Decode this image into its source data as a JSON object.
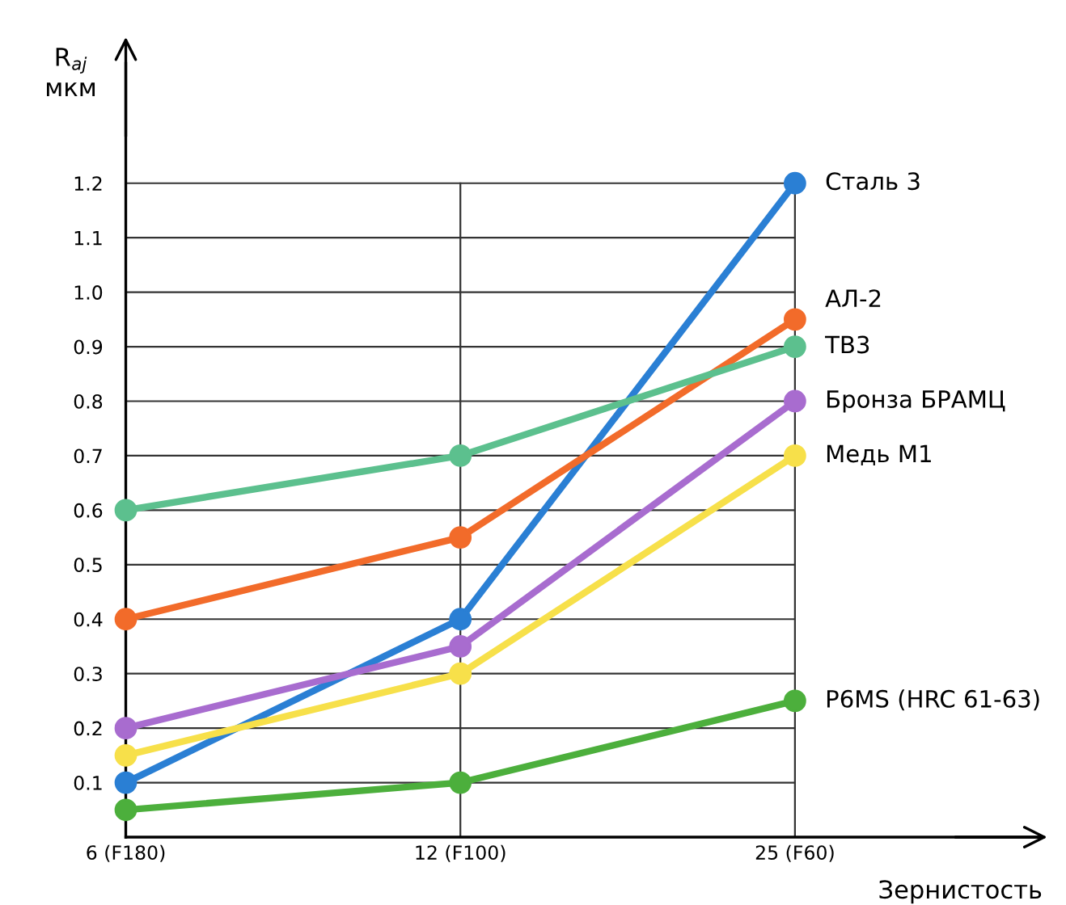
{
  "chart_data": {
    "type": "line",
    "categories": [
      "6 (F180)",
      "12 (F100)",
      "25 (F60)"
    ],
    "xlabel": "Зернистость",
    "ylabel": "R$_{aj}$\nмкм",
    "ylim": [
      0,
      1.42
    ],
    "yticks": [
      0.1,
      0.2,
      0.3,
      0.4,
      0.5,
      0.6,
      0.7,
      0.8,
      0.9,
      {
        "value": 1.0,
        "label": "1.0"
      },
      1.1,
      1.2
    ],
    "grid": true,
    "marker": "circle",
    "line_style": "solid",
    "legend": false,
    "series": [
      {
        "name": "Сталь 3",
        "color": "#2a7fd4",
        "values": [
          0.1,
          0.4,
          1.2
        ]
      },
      {
        "name": "АЛ-2",
        "color": "#f26b2a",
        "values": [
          0.4,
          0.55,
          0.95
        ]
      },
      {
        "name": "ТВ3",
        "color": "#5cc08e",
        "values": [
          0.6,
          0.7,
          0.9
        ]
      },
      {
        "name": "Бронза БРАМЦ",
        "color": "#a86ccf",
        "values": [
          0.2,
          0.35,
          0.8
        ]
      },
      {
        "name": "Медь М1",
        "color": "#f7e04a",
        "values": [
          0.15,
          0.3,
          0.7
        ]
      },
      {
        "name": "P6MS (HRC 61-63)",
        "color": "#4caf3c",
        "values": [
          0.05,
          0.1,
          0.25
        ]
      }
    ]
  }
}
